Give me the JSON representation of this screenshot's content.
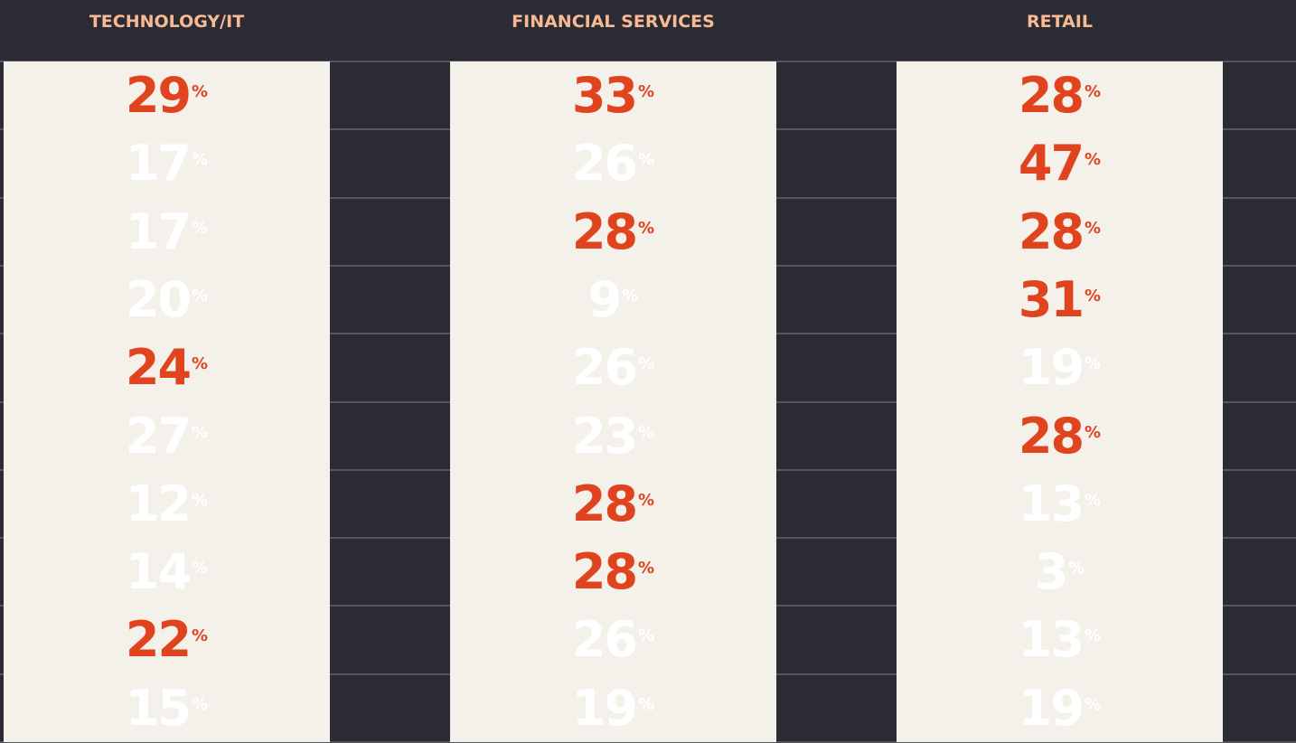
{
  "table": {
    "unit": "%",
    "columns": [
      {
        "header": "TECHNOLOGY/IT",
        "values": [
          29,
          17,
          17,
          20,
          24,
          27,
          12,
          14,
          22,
          15
        ],
        "highlight": [
          true,
          false,
          false,
          false,
          true,
          false,
          false,
          false,
          true,
          false
        ]
      },
      {
        "header": "FINANCIAL SERVICES",
        "values": [
          33,
          26,
          28,
          9,
          26,
          23,
          28,
          28,
          26,
          19
        ],
        "highlight": [
          true,
          false,
          true,
          false,
          false,
          false,
          true,
          true,
          false,
          false
        ]
      },
      {
        "header": "RETAIL",
        "values": [
          28,
          47,
          28,
          31,
          19,
          28,
          13,
          3,
          13,
          19
        ],
        "highlight": [
          true,
          true,
          true,
          true,
          false,
          true,
          false,
          false,
          false,
          false
        ]
      }
    ],
    "highlight_color": "#e0441e",
    "plain_color": "#ffffff"
  }
}
